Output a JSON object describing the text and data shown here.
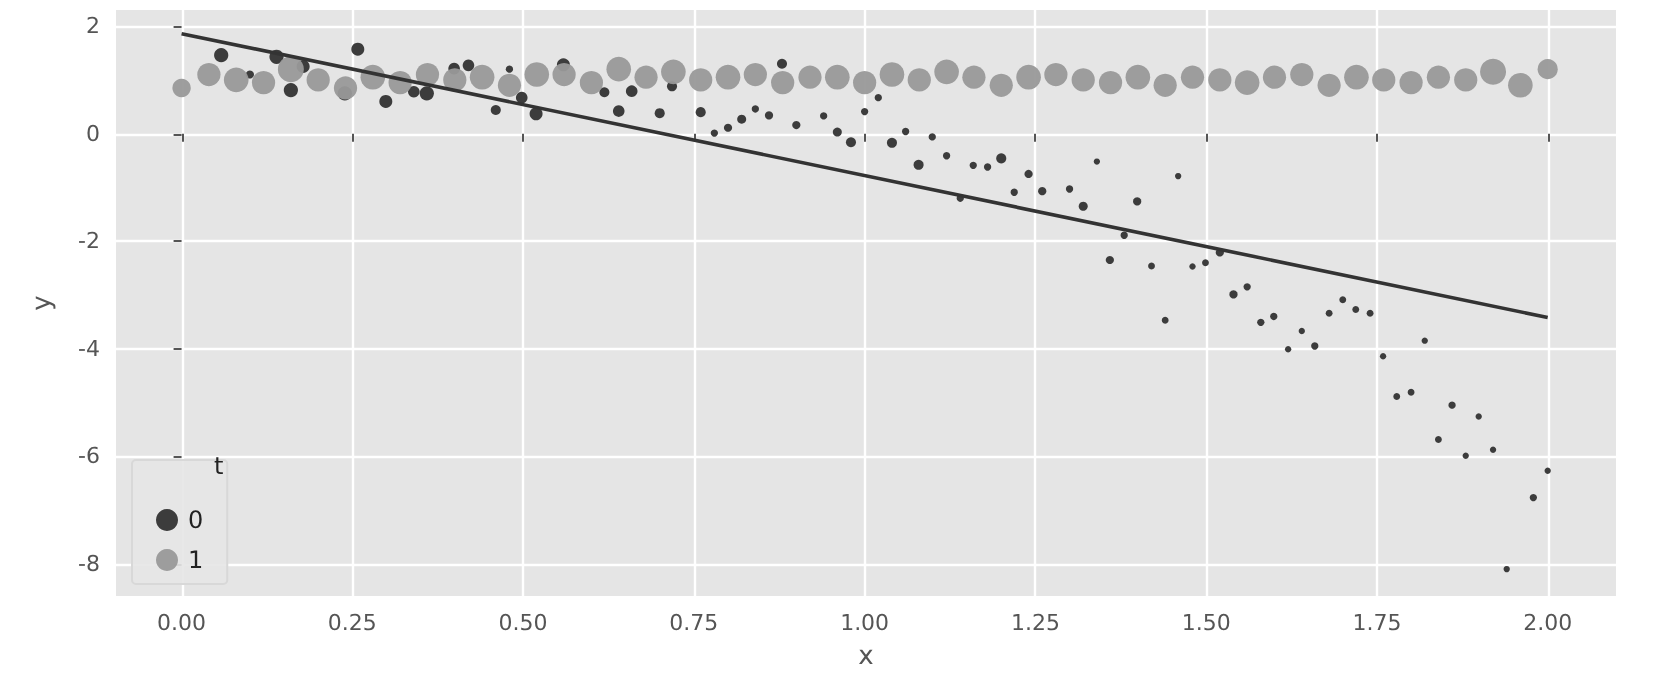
{
  "chart_data": {
    "type": "bubble",
    "xlabel": "x",
    "ylabel": "y",
    "legend_title": "t",
    "xlim": [
      -0.096,
      2.1
    ],
    "ylim": [
      -8.6,
      2.3
    ],
    "xticks": [
      {
        "value": 0,
        "label": "0.00"
      },
      {
        "value": 0.25,
        "label": "0.25"
      },
      {
        "value": 0.5,
        "label": "0.50"
      },
      {
        "value": 0.75,
        "label": "0.75"
      },
      {
        "value": 1,
        "label": "1.00"
      },
      {
        "value": 1.25,
        "label": "1.25"
      },
      {
        "value": 1.5,
        "label": "1.50"
      },
      {
        "value": 1.75,
        "label": "1.75"
      },
      {
        "value": 2,
        "label": "2.00"
      }
    ],
    "yticks": [
      -8,
      -6,
      -4,
      -2,
      0,
      2
    ],
    "grid": true,
    "legend": "bottom left",
    "marker": "circle",
    "series": [
      {
        "name": "0",
        "color": "#333333",
        "x": [
          0.058,
          0.1,
          0.139,
          0.16,
          0.178,
          0.239,
          0.258,
          0.299,
          0.34,
          0.359,
          0.399,
          0.42,
          0.46,
          0.48,
          0.498,
          0.519,
          0.559,
          0.619,
          0.64,
          0.659,
          0.7,
          0.718,
          0.76,
          0.78,
          0.8,
          0.82,
          0.84,
          0.86,
          0.879,
          0.9,
          0.94,
          0.96,
          0.98,
          1.0,
          1.02,
          1.04,
          1.06,
          1.079,
          1.099,
          1.12,
          1.14,
          1.159,
          1.18,
          1.2,
          1.219,
          1.24,
          1.26,
          1.3,
          1.32,
          1.34,
          1.359,
          1.38,
          1.399,
          1.42,
          1.44,
          1.459,
          1.48,
          1.499,
          1.52,
          1.54,
          1.56,
          1.58,
          1.599,
          1.62,
          1.64,
          1.659,
          1.68,
          1.7,
          1.719,
          1.74,
          1.759,
          1.779,
          1.8,
          1.82,
          1.84,
          1.86,
          1.88,
          1.899,
          1.92,
          1.94,
          1.979,
          2.0
        ],
        "values": [
          1.46,
          1.1,
          1.43,
          0.81,
          1.25,
          0.75,
          1.57,
          0.6,
          0.78,
          0.75,
          1.21,
          1.27,
          0.44,
          1.2,
          0.67,
          0.37,
          1.28,
          0.77,
          0.42,
          0.79,
          0.38,
          0.88,
          0.4,
          0.01,
          0.11,
          0.27,
          0.46,
          0.34,
          1.3,
          0.16,
          0.33,
          0.03,
          -0.16,
          0.41,
          0.67,
          -0.17,
          0.04,
          -0.58,
          -0.06,
          -0.41,
          -1.2,
          -0.59,
          -0.62,
          -0.46,
          -1.09,
          -0.75,
          -1.07,
          -1.03,
          -1.35,
          -0.52,
          -2.35,
          -1.89,
          -1.26,
          -2.46,
          -3.47,
          -0.79,
          -2.47,
          -2.4,
          -2.21,
          -2.99,
          -2.85,
          -3.51,
          -3.4,
          -4.01,
          -3.67,
          -3.95,
          -3.34,
          -3.09,
          -3.27,
          -3.34,
          -4.14,
          -4.89,
          -4.81,
          -3.85,
          -5.69,
          -5.05,
          -5.99,
          -5.26,
          -5.88,
          -8.1,
          -6.77,
          -6.27
        ],
        "sizes": [
          0.3,
          0.1,
          0.3,
          0.3,
          0.25,
          0.3,
          0.25,
          0.25,
          0.2,
          0.3,
          0.2,
          0.2,
          0.15,
          0.08,
          0.2,
          0.25,
          0.25,
          0.15,
          0.2,
          0.2,
          0.15,
          0.15,
          0.15,
          0.08,
          0.1,
          0.12,
          0.08,
          0.1,
          0.15,
          0.1,
          0.08,
          0.12,
          0.15,
          0.08,
          0.08,
          0.15,
          0.08,
          0.15,
          0.08,
          0.08,
          0.08,
          0.08,
          0.08,
          0.15,
          0.08,
          0.1,
          0.1,
          0.08,
          0.12,
          0.06,
          0.1,
          0.08,
          0.1,
          0.07,
          0.07,
          0.06,
          0.06,
          0.07,
          0.1,
          0.1,
          0.08,
          0.08,
          0.08,
          0.06,
          0.06,
          0.08,
          0.07,
          0.07,
          0.07,
          0.07,
          0.06,
          0.07,
          0.07,
          0.06,
          0.07,
          0.08,
          0.06,
          0.06,
          0.06,
          0.06,
          0.08,
          0.06
        ]
      },
      {
        "name": "1",
        "color": "#999999",
        "x": [
          0,
          0.04,
          0.08,
          0.12,
          0.16,
          0.2,
          0.24,
          0.28,
          0.32,
          0.36,
          0.4,
          0.44,
          0.48,
          0.52,
          0.56,
          0.6,
          0.64,
          0.68,
          0.72,
          0.76,
          0.8,
          0.84,
          0.88,
          0.92,
          0.96,
          1.0,
          1.04,
          1.08,
          1.12,
          1.16,
          1.2,
          1.24,
          1.28,
          1.32,
          1.36,
          1.4,
          1.44,
          1.48,
          1.52,
          1.56,
          1.6,
          1.64,
          1.68,
          1.72,
          1.76,
          1.8,
          1.84,
          1.88,
          1.92,
          1.96,
          2.0
        ],
        "values": [
          0.85,
          1.1,
          1.0,
          0.95,
          1.2,
          1.0,
          0.85,
          1.05,
          0.95,
          1.1,
          1.0,
          1.05,
          0.9,
          1.1,
          1.1,
          0.95,
          1.2,
          1.05,
          1.15,
          1.0,
          1.05,
          1.1,
          0.95,
          1.05,
          1.05,
          0.95,
          1.1,
          1.0,
          1.15,
          1.05,
          0.9,
          1.05,
          1.1,
          1.0,
          0.95,
          1.05,
          0.9,
          1.05,
          1.0,
          0.95,
          1.05,
          1.1,
          0.9,
          1.05,
          1.0,
          0.95,
          1.05,
          1.0,
          1.15,
          0.9,
          1.2
        ],
        "sizes": [
          0.5,
          0.8,
          0.9,
          0.8,
          1,
          0.8,
          0.8,
          0.9,
          0.8,
          0.8,
          0.8,
          0.9,
          0.8,
          0.9,
          0.8,
          0.8,
          0.9,
          0.8,
          0.9,
          0.8,
          0.9,
          0.8,
          0.8,
          0.8,
          0.9,
          0.8,
          0.9,
          0.8,
          0.9,
          0.8,
          0.8,
          0.9,
          0.8,
          0.8,
          0.8,
          0.9,
          0.8,
          0.8,
          0.8,
          0.9,
          0.8,
          0.8,
          0.8,
          0.9,
          0.8,
          0.8,
          0.8,
          0.8,
          1,
          0.9,
          0.6
        ]
      },
      {
        "type": "line",
        "color": "#333333",
        "marker": "none",
        "x": [
          0,
          2
        ],
        "values": [
          1.86,
          -3.42
        ]
      }
    ]
  }
}
